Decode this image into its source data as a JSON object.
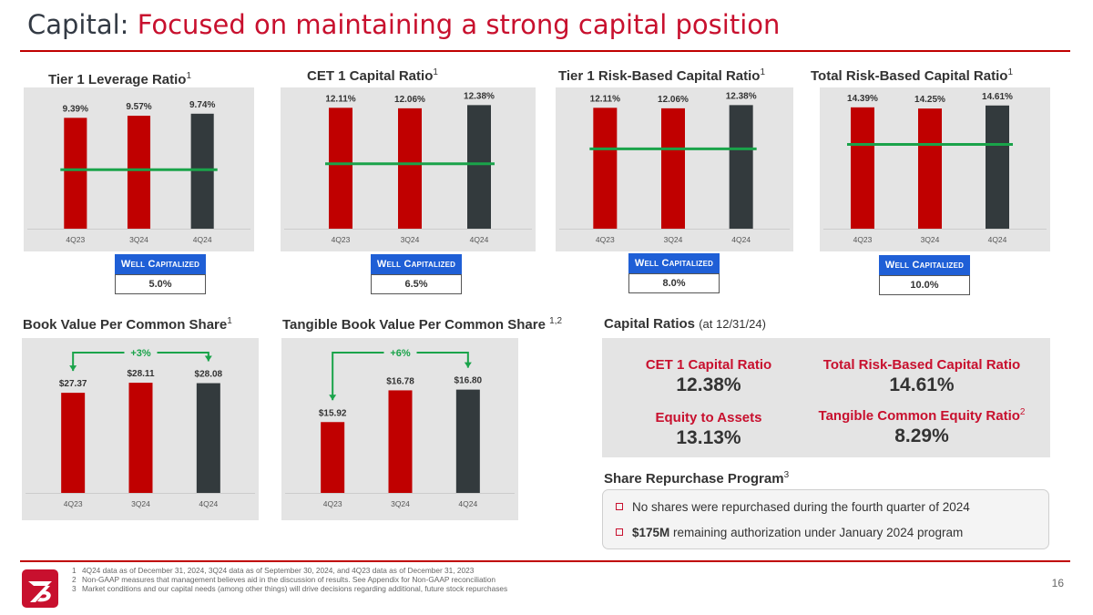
{
  "title": {
    "prefix": "Capital:",
    "main": "Focused on maintaining a strong capital position"
  },
  "colors": {
    "red": "#c00000",
    "dark": "#333a3d",
    "threshold": "#1aa34a",
    "accent_blue": "#1f5fd6",
    "title_red": "#c8102e"
  },
  "panels": {
    "tier1_leverage": {
      "title": "Tier 1 Leverage Ratio",
      "sup": "1",
      "well_cap_label": "Well Capitalized",
      "well_cap_value": "5.0%"
    },
    "cet1": {
      "title": "CET 1 Capital Ratio",
      "sup": "1",
      "well_cap_label": "Well Capitalized",
      "well_cap_value": "6.5%"
    },
    "tier1_risk": {
      "title": "Tier 1 Risk-Based Capital Ratio",
      "sup": "1",
      "well_cap_label": "Well Capitalized",
      "well_cap_value": "8.0%"
    },
    "total_risk": {
      "title": "Total Risk-Based Capital Ratio",
      "sup": "1",
      "well_cap_label": "Well Capitalized",
      "well_cap_value": "10.0%"
    },
    "bvps": {
      "title": "Book Value Per Common Share",
      "sup": "1"
    },
    "tbvps": {
      "title": "Tangible Book Value Per Common Share",
      "sup": "1,2"
    }
  },
  "chart_data": [
    {
      "id": "tier1_leverage",
      "type": "bar",
      "categories": [
        "4Q23",
        "3Q24",
        "4Q24"
      ],
      "values": [
        9.39,
        9.57,
        9.74
      ],
      "labels": [
        "9.39%",
        "9.57%",
        "9.74%"
      ],
      "threshold": 5.0,
      "ylim": [
        0,
        11.5
      ]
    },
    {
      "id": "cet1",
      "type": "bar",
      "categories": [
        "4Q23",
        "3Q24",
        "4Q24"
      ],
      "values": [
        12.11,
        12.06,
        12.38
      ],
      "labels": [
        "12.11%",
        "12.06%",
        "12.38%"
      ],
      "threshold": 6.5,
      "ylim": [
        0,
        13.6
      ]
    },
    {
      "id": "tier1_risk",
      "type": "bar",
      "categories": [
        "4Q23",
        "3Q24",
        "4Q24"
      ],
      "values": [
        12.11,
        12.06,
        12.38
      ],
      "labels": [
        "12.11%",
        "12.06%",
        "12.38%"
      ],
      "threshold": 8.0,
      "ylim": [
        0,
        13.6
      ]
    },
    {
      "id": "total_risk",
      "type": "bar",
      "categories": [
        "4Q23",
        "3Q24",
        "4Q24"
      ],
      "values": [
        14.39,
        14.25,
        14.61
      ],
      "labels": [
        "14.39%",
        "14.25%",
        "14.61%"
      ],
      "threshold": 10.0,
      "ylim": [
        0,
        16.1
      ]
    },
    {
      "id": "bvps",
      "type": "bar",
      "categories": [
        "4Q23",
        "3Q24",
        "4Q24"
      ],
      "values": [
        27.37,
        28.11,
        28.08
      ],
      "labels": [
        "$27.37",
        "$28.11",
        "$28.08"
      ],
      "change_label": "+3%",
      "ylim": [
        20,
        31
      ]
    },
    {
      "id": "tbvps",
      "type": "bar",
      "categories": [
        "4Q23",
        "3Q24",
        "4Q24"
      ],
      "values": [
        15.92,
        16.78,
        16.8
      ],
      "labels": [
        "$15.92",
        "$16.78",
        "$16.80"
      ],
      "change_label": "+6%",
      "ylim": [
        14,
        18.05
      ]
    }
  ],
  "capital_ratios": {
    "title": "Capital Ratios",
    "subtitle": "(at 12/31/24)",
    "items": [
      {
        "label": "CET 1 Capital Ratio",
        "sup": "",
        "value": "12.38%"
      },
      {
        "label": "Total Risk-Based Capital Ratio",
        "sup": "",
        "value": "14.61%"
      },
      {
        "label": "Equity to Assets",
        "sup": "",
        "value": "13.13%"
      },
      {
        "label": "Tangible Common Equity Ratio",
        "sup": "2",
        "value": "8.29%"
      }
    ]
  },
  "repurchase": {
    "title": "Share Repurchase Program",
    "sup": "3",
    "item1": "No shares were repurchased during the fourth quarter of 2024",
    "item2_bold": "$175M",
    "item2_rest": " remaining authorization under January 2024 program"
  },
  "footnotes": [
    {
      "num": "1",
      "text": "4Q24 data as of December 31, 2024, 3Q24 data as of September 30, 2024, and 4Q23 data as of December 31, 2023"
    },
    {
      "num": "2",
      "text": "Non-GAAP measures that management believes aid in the discussion of results. See Appendix for Non-GAAP reconciliation"
    },
    {
      "num": "3",
      "text": "Market conditions and our capital needs (among other things) will drive decisions regarding additional, future stock repurchases"
    }
  ],
  "page_number": "16"
}
